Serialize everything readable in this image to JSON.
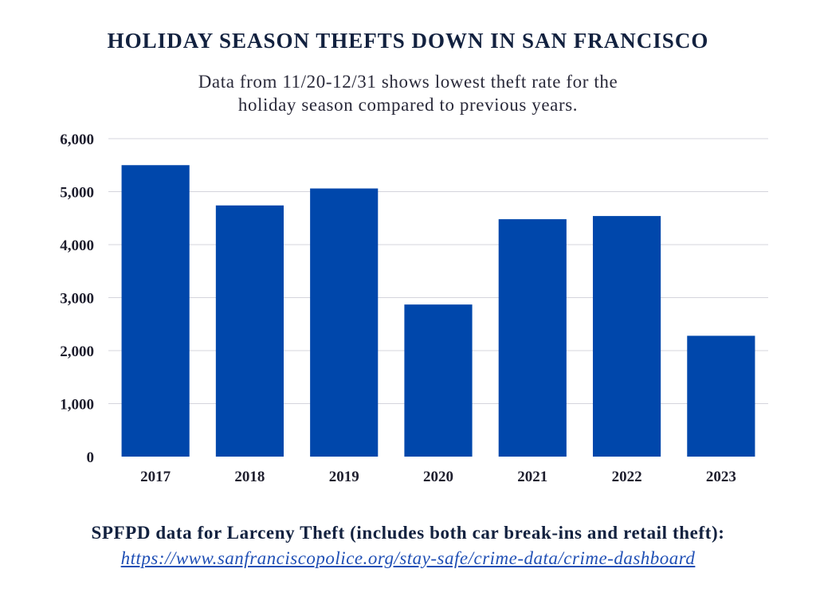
{
  "title": "HOLIDAY SEASON THEFTS DOWN IN SAN FRANCISCO",
  "subtitle_lines": [
    "Data from 11/20-12/31 shows lowest theft rate for the",
    "holiday season compared to previous years."
  ],
  "footer": {
    "source_text": "SPFPD data for Larceny Theft (includes both car break-ins and retail theft):",
    "link_text": " https://www.sanfranciscopolice.org/stay-safe/crime-data/crime-dashboard "
  },
  "colors": {
    "bar": "#0047ab",
    "grid": "#d4d4dc",
    "title": "#12213f"
  },
  "chart_data": {
    "type": "bar",
    "categories": [
      "2017",
      "2018",
      "2019",
      "2020",
      "2021",
      "2022",
      "2023"
    ],
    "values": [
      5500,
      4740,
      5060,
      2870,
      4480,
      4540,
      2280
    ],
    "ylim": [
      0,
      6000
    ],
    "yticks": [
      0,
      1000,
      2000,
      3000,
      4000,
      5000,
      6000
    ],
    "ytick_labels": [
      "0",
      "1,000",
      "2,000",
      "3,000",
      "4,000",
      "5,000",
      "6,000"
    ],
    "grid": true,
    "xlabel": "",
    "ylabel": ""
  }
}
